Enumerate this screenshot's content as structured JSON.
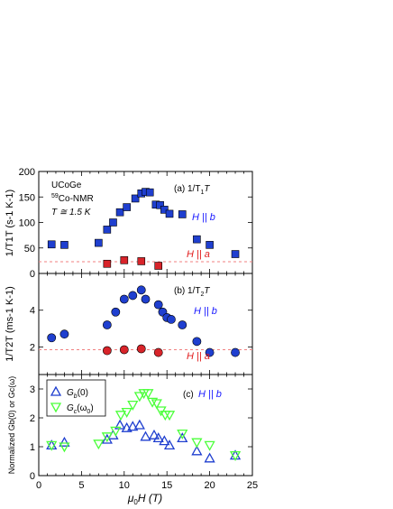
{
  "figure": {
    "xlabel_mu": "μ",
    "xlabel_sub": "0",
    "xlabel_rest": "H (T)"
  },
  "colors": {
    "blue": "#1f3fcf",
    "red": "#d8242a",
    "green": "#4bff3a",
    "dashed": "#f08080",
    "text_blue": "#1a1aff",
    "text_red": "#e11b1b"
  },
  "chart_data": [
    {
      "type": "scatter",
      "panel": "a",
      "panel_label": "(a)  1/T",
      "panel_label_sub": "1",
      "panel_label_tail": "T",
      "sample": "UCoGe",
      "nmr_label": "59Co-NMR",
      "nmr_sup": "59",
      "nmr_rest": "Co-NMR",
      "temp_label": "T ≅ 1.5 K",
      "ylabel": "1/T1T (s-1 K-1)",
      "ylim": [
        0,
        200
      ],
      "yticks": [
        0,
        50,
        100,
        150,
        200
      ],
      "xlim": [
        0,
        25
      ],
      "dashed_level": 23,
      "series": [
        {
          "name": "H || b",
          "marker": "square",
          "color": "#1f3fcf",
          "x": [
            1.5,
            3,
            7,
            8,
            8.7,
            9.5,
            10.3,
            11.3,
            12,
            12.5,
            13,
            13.7,
            14.2,
            14.7,
            15.3,
            16.8,
            18.5,
            20,
            23
          ],
          "y": [
            57,
            56,
            60,
            86,
            100,
            120,
            130,
            147,
            157,
            160,
            159,
            135,
            134,
            125,
            117,
            116,
            67,
            56,
            38
          ]
        },
        {
          "name": "H || a",
          "marker": "square",
          "color": "#d8242a",
          "x": [
            8,
            10,
            12,
            14
          ],
          "y": [
            19,
            26,
            24,
            15
          ]
        }
      ]
    },
    {
      "type": "scatter",
      "panel": "b",
      "panel_label": "(b)  1/T",
      "panel_label_sub": "2",
      "panel_label_tail": "T",
      "ylabel": "1/T2T (ms-1 K-1)",
      "ylim": [
        0.5,
        6
      ],
      "yticks": [
        2,
        4
      ],
      "xlim": [
        0,
        25
      ],
      "dashed_level": 1.85,
      "series": [
        {
          "name": "H || b",
          "marker": "circle",
          "color": "#1f3fcf",
          "x": [
            1.5,
            3,
            8,
            9,
            10,
            11,
            12,
            12.5,
            14,
            14.5,
            15,
            15.5,
            16.8,
            18.5,
            20,
            23
          ],
          "y": [
            2.5,
            2.7,
            3.2,
            3.9,
            4.6,
            4.8,
            5.1,
            4.6,
            4.3,
            3.9,
            3.6,
            3.5,
            3.2,
            2.3,
            1.7,
            1.7
          ]
        },
        {
          "name": "H || a",
          "marker": "circle",
          "color": "#d8242a",
          "x": [
            8,
            10,
            12,
            14
          ],
          "y": [
            1.8,
            1.85,
            1.9,
            1.7
          ]
        }
      ]
    },
    {
      "type": "scatter",
      "panel": "c",
      "panel_label": "(c)",
      "field_label": "H || b",
      "ylabel": "Normalized Gb(0) or Gc(ω)",
      "ylim": [
        0,
        3.5
      ],
      "yticks": [
        0,
        1,
        2,
        3
      ],
      "xlim": [
        0,
        25
      ],
      "xticks": [
        0,
        5,
        10,
        15,
        20,
        25
      ],
      "series": [
        {
          "name": "Gb(0)",
          "legend_main": "G",
          "legend_sub": "b",
          "legend_tail": "(0)",
          "marker": "triangle-up",
          "color": "#1f3fcf",
          "x": [
            1.5,
            3,
            8,
            8.7,
            9.5,
            10.3,
            11,
            11.8,
            12.5,
            13.5,
            14,
            14.7,
            15.3,
            16.8,
            18.5,
            20,
            23
          ],
          "y": [
            1.05,
            1.15,
            1.25,
            1.4,
            1.75,
            1.65,
            1.7,
            1.75,
            1.35,
            1.4,
            1.3,
            1.2,
            1.05,
            1.3,
            0.85,
            0.6,
            0.7
          ]
        },
        {
          "name": "Gc(ω0)",
          "legend_main": "G",
          "legend_sub": "c",
          "legend_tail": "(ω",
          "legend_tail_sub": "0",
          "legend_close": ")",
          "marker": "triangle-down",
          "color": "#4bff3a",
          "x": [
            1.5,
            3,
            7,
            8,
            9,
            9.6,
            10.3,
            11,
            11.8,
            12.3,
            12.8,
            13.3,
            13.8,
            14.3,
            14.8,
            15.3,
            16.8,
            18.5,
            20,
            23
          ],
          "y": [
            1.05,
            1.0,
            1.1,
            1.35,
            1.55,
            2.1,
            2.2,
            2.45,
            2.75,
            2.85,
            2.85,
            2.55,
            2.5,
            2.25,
            2.1,
            2.1,
            1.45,
            1.15,
            1.05,
            0.7
          ]
        }
      ]
    }
  ]
}
